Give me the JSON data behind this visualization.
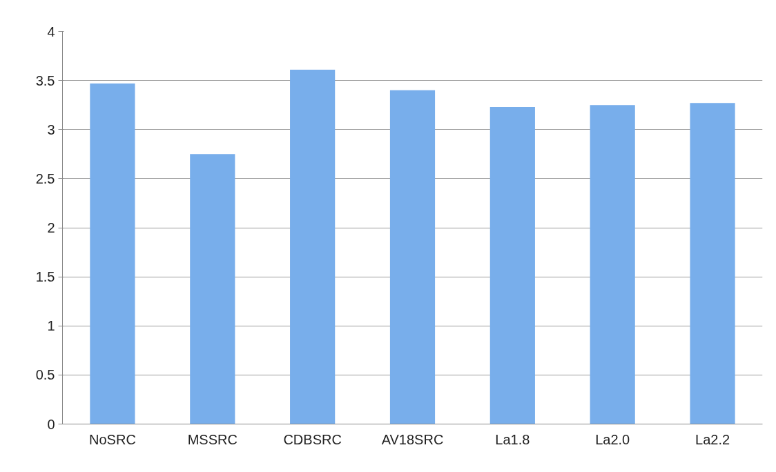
{
  "chart_data": {
    "type": "bar",
    "categories": [
      "NoSRC",
      "MSSRC",
      "CDBSRC",
      "AV18SRC",
      "La1.8",
      "La2.0",
      "La2.2"
    ],
    "values": [
      3.47,
      2.75,
      3.61,
      3.4,
      3.23,
      3.25,
      3.27
    ],
    "color": "#78aeeb",
    "ylim": [
      0,
      4
    ],
    "yticks": [
      0,
      0.5,
      1,
      1.5,
      2,
      2.5,
      3,
      3.5,
      4
    ],
    "grid": "y"
  }
}
